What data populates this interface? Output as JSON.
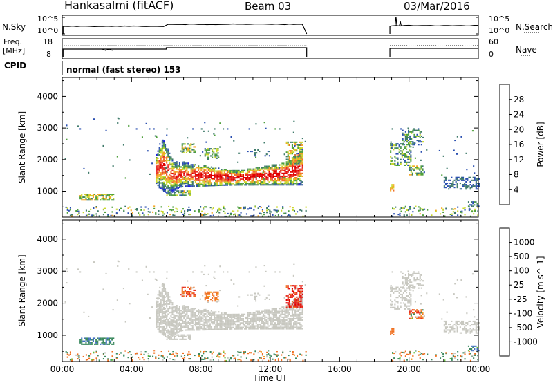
{
  "header": {
    "station": "Hankasalmi (fitACF)",
    "beam": "Beam 03",
    "date": "03/Mar/2016"
  },
  "strip_labels": {
    "nsky": "N.Sky",
    "nsearch": "N.Search",
    "freq_top": "Freq.",
    "freq_unit": "[MHz]",
    "nave": "Nave",
    "cpid": "CPID",
    "cpid_text": "normal (fast stereo) 153",
    "noise_ticks_left": [
      "10^5",
      "10^0"
    ],
    "noise_ticks_right": [
      "10^5",
      "10^0"
    ],
    "freq_ticks": [
      "18",
      "8"
    ],
    "nave_ticks": [
      "60",
      "0"
    ]
  },
  "colors": {
    "power_scale": [
      "#1e1ee6",
      "#2a4fb0",
      "#3f7a6a",
      "#4fa03c",
      "#c9d82a",
      "#f5a623",
      "#f07028",
      "#e8302a",
      "#e00000"
    ],
    "velocity_scale": [
      "#2b4fb5",
      "#3f6fbf",
      "#3d8a60",
      "#61c23a",
      "#c8c8c0",
      "#c8c8c0",
      "#f0a020",
      "#f07020",
      "#e83020",
      "#e00000"
    ],
    "grey": "#c8c8c0"
  },
  "chart_data": [
    {
      "type": "heatmap",
      "title": "Power",
      "xlabel": "Time UT",
      "ylabel": "Slant Range [km]",
      "xlim": [
        "00:00",
        "24:00"
      ],
      "ylim": [
        180,
        4600
      ],
      "x_ticks": [
        "00:00",
        "04:00",
        "08:00",
        "12:00",
        "16:00",
        "20:00",
        "00:00"
      ],
      "y_ticks": [
        "1000",
        "2000",
        "3000",
        "4000"
      ],
      "colorbar": {
        "label": "Power [dB]",
        "ticks": [
          "4",
          "8",
          "12",
          "16",
          "20",
          "24",
          "28"
        ],
        "range": [
          0,
          30
        ]
      },
      "features": [
        {
          "t": [
            5.4,
            13.9
          ],
          "range_km": [
            1000,
            2300
          ],
          "power_db": [
            4,
            28
          ],
          "note": "main backscatter band"
        },
        {
          "t": [
            1.0,
            3.0
          ],
          "range_km": [
            700,
            900
          ],
          "power_db": [
            8,
            20
          ]
        },
        {
          "t": [
            6.0,
            7.4
          ],
          "range_km": [
            850,
            1000
          ],
          "power_db": [
            6,
            18
          ]
        },
        {
          "t": [
            18.9,
            21.0
          ],
          "range_km": [
            1800,
            2900
          ],
          "power_db": [
            4,
            16
          ]
        },
        {
          "t": [
            22.0,
            24.0
          ],
          "range_km": [
            1000,
            1500
          ],
          "power_db": [
            4,
            10
          ]
        }
      ]
    },
    {
      "type": "heatmap",
      "title": "Velocity",
      "xlabel": "Time UT",
      "ylabel": "Slant Range [km]",
      "xlim": [
        "00:00",
        "24:00"
      ],
      "ylim": [
        180,
        4600
      ],
      "x_ticks": [
        "00:00",
        "04:00",
        "08:00",
        "12:00",
        "16:00",
        "20:00",
        "00:00"
      ],
      "y_ticks": [
        "1000",
        "2000",
        "3000",
        "4000"
      ],
      "colorbar": {
        "label": "Velocity [m s^-1]",
        "ticks": [
          "1000",
          "500",
          "100",
          "25",
          "-25",
          "-100",
          "-500",
          "-1000"
        ]
      },
      "features": [
        {
          "t": [
            5.4,
            13.9
          ],
          "range_km": [
            1100,
            2300
          ],
          "velocity_ms": [
            -25,
            25
          ],
          "note": "ground scatter (grey)"
        },
        {
          "t": [
            6.8,
            7.6
          ],
          "range_km": [
            2200,
            2600
          ],
          "velocity_ms": [
            -500,
            -100
          ]
        },
        {
          "t": [
            13.0,
            13.9
          ],
          "range_km": [
            1800,
            2600
          ],
          "velocity_ms": [
            -1000,
            -100
          ]
        },
        {
          "t": [
            20.0,
            20.8
          ],
          "range_km": [
            1500,
            1800
          ],
          "velocity_ms": [
            -500,
            100
          ]
        }
      ]
    }
  ]
}
